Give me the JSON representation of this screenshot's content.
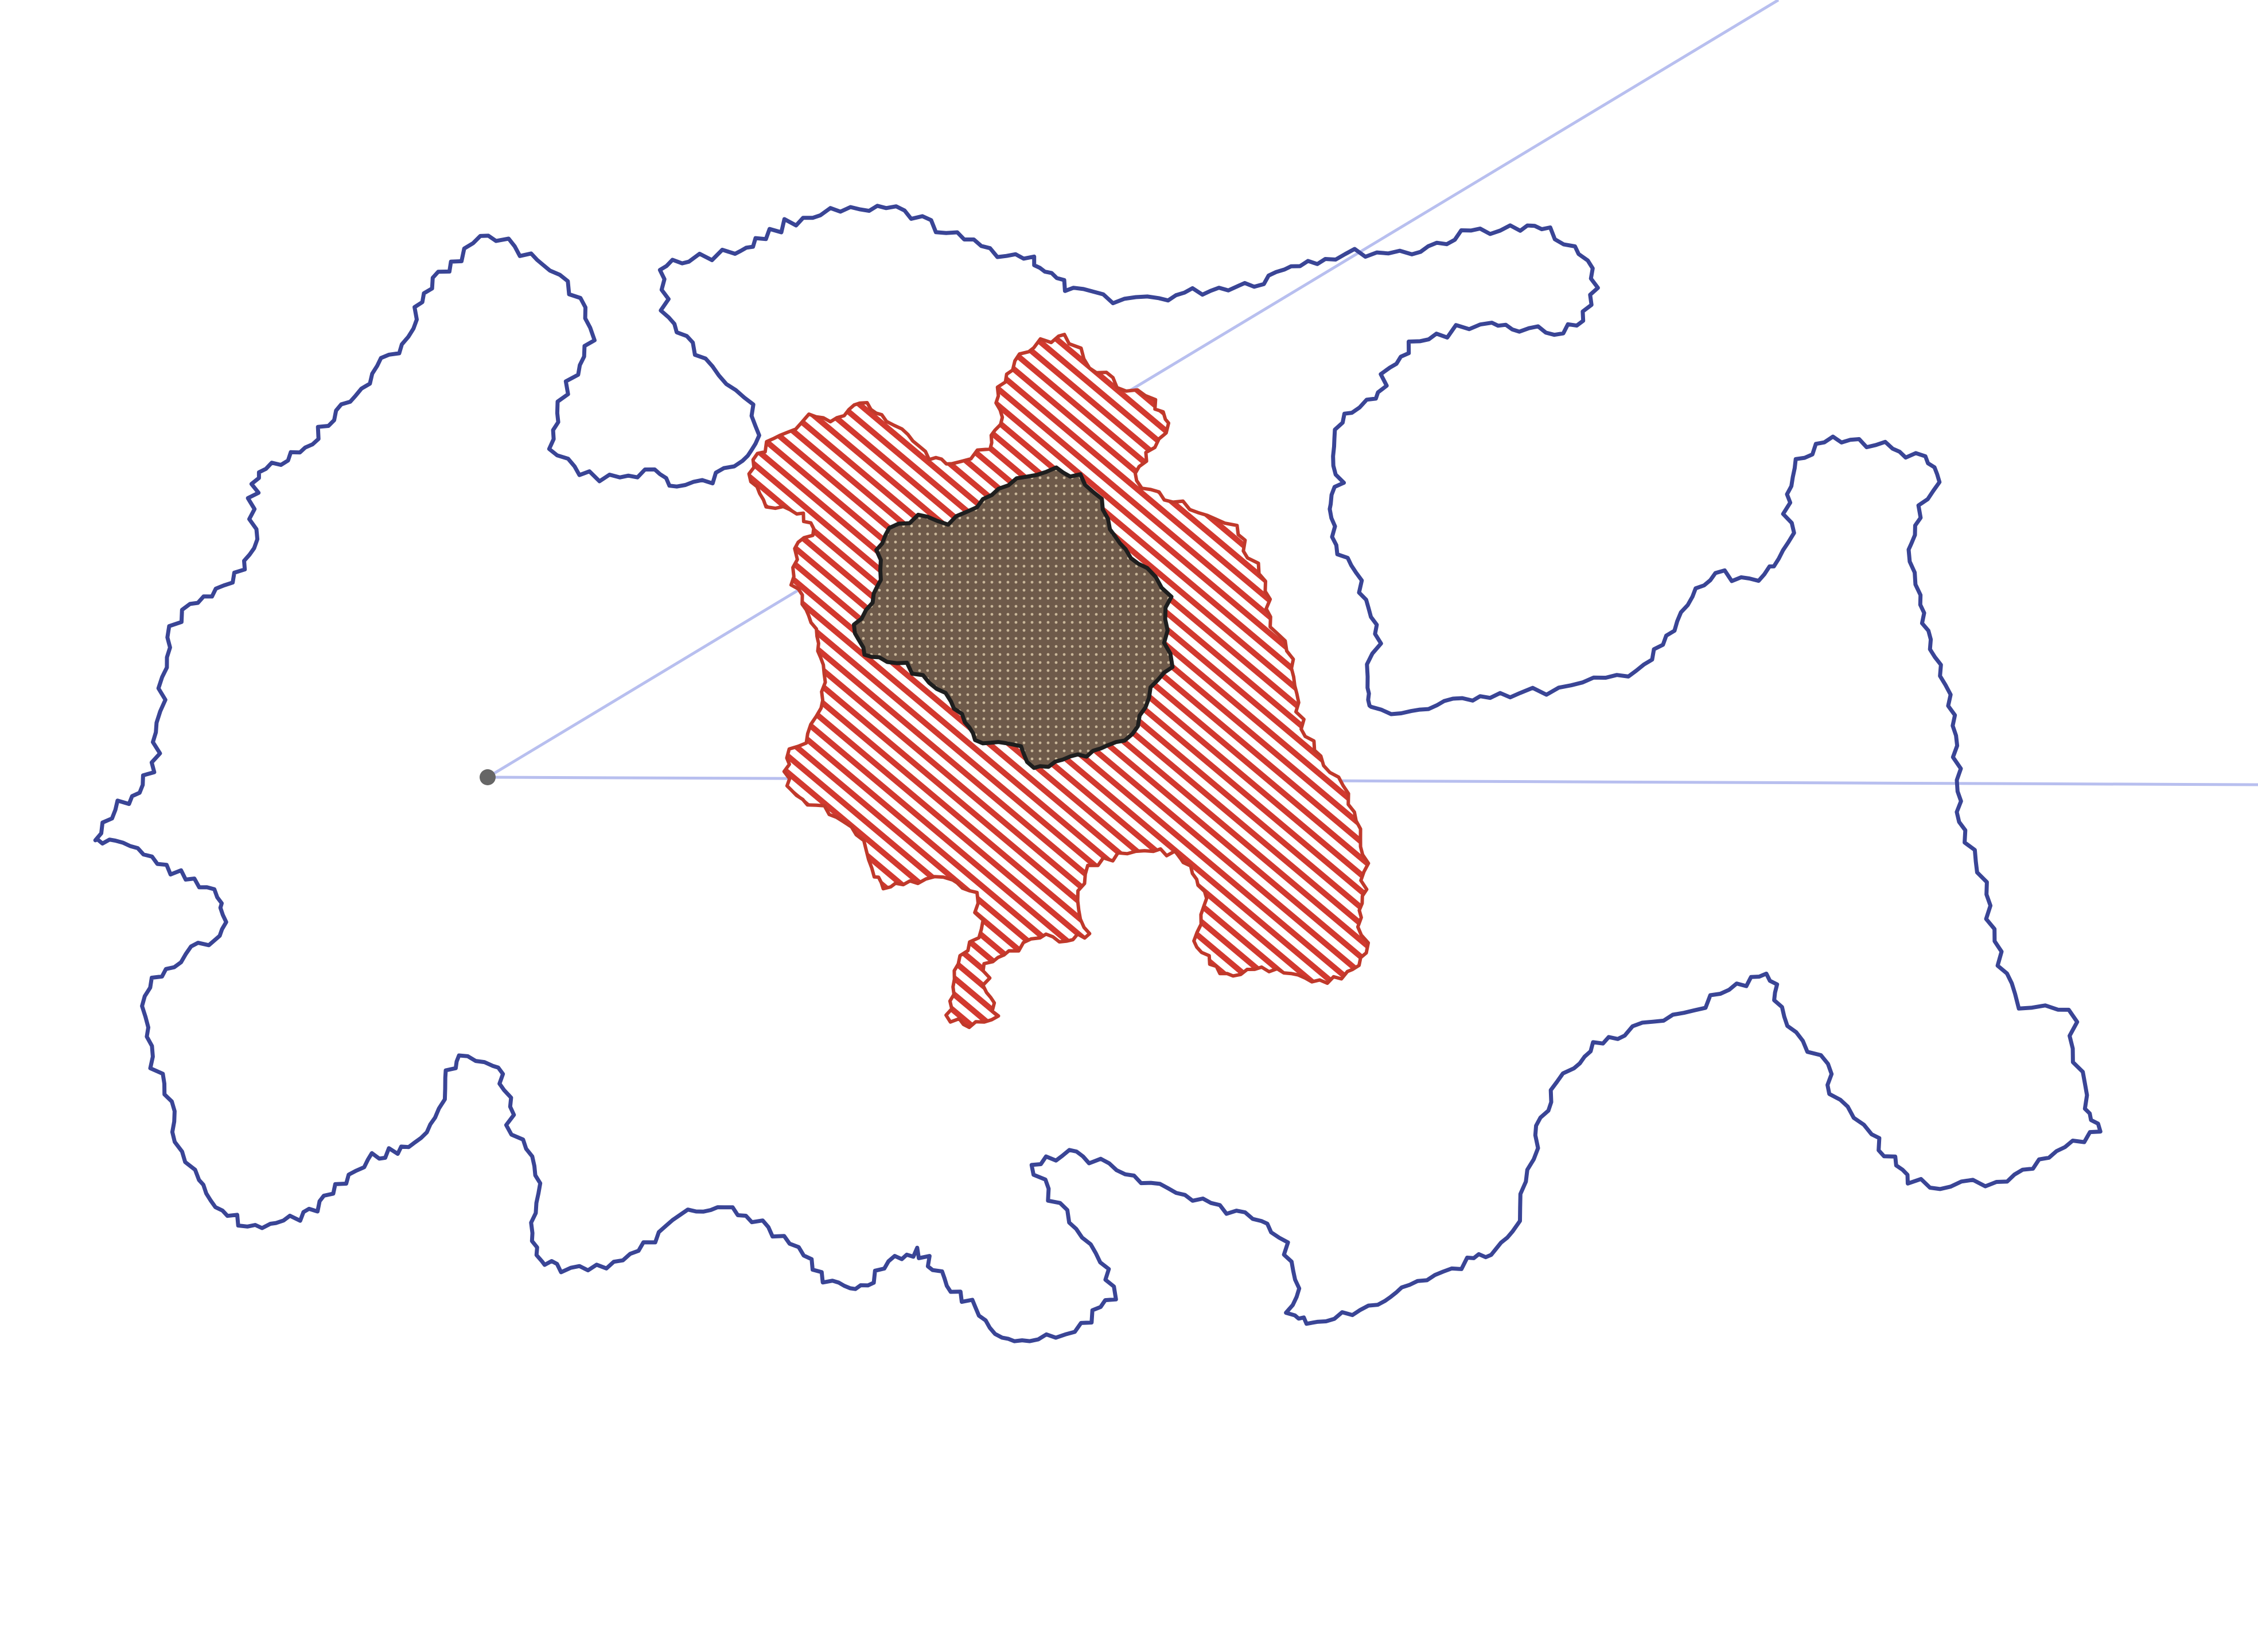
{
  "diagram": {
    "colors": {
      "background": "#ffffff",
      "outer_outline": "#3a4596",
      "guide_line": "#b8bfef",
      "middle_outline": "#c0392b",
      "middle_hatch": "#d2392f",
      "inner_fill": "#6e5a4a",
      "inner_outline": "#1e1e1e",
      "vertex_point": "#666666"
    },
    "shapes": [
      {
        "id": "outer-region",
        "style": "outline"
      },
      {
        "id": "middle-region",
        "style": "diagonal-hatch"
      },
      {
        "id": "inner-region",
        "style": "dotted-fill"
      }
    ],
    "guide": {
      "type": "angle-rays",
      "rays": 2,
      "vertex_marker": "dot"
    }
  }
}
